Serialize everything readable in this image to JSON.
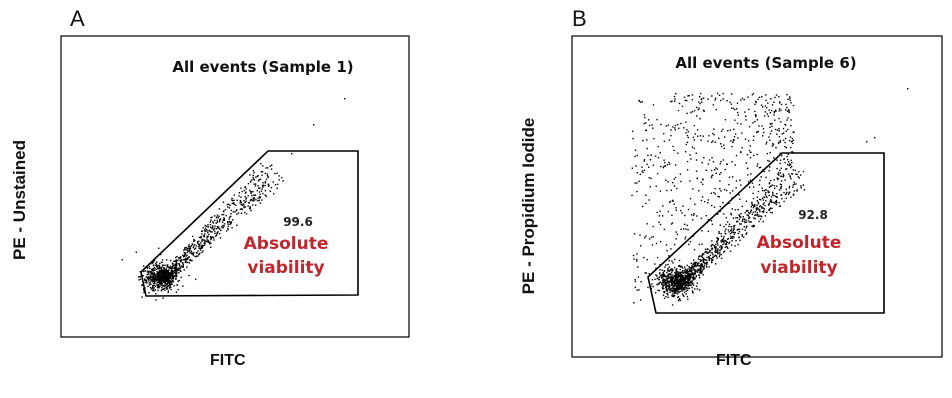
{
  "chart_data": [
    {
      "type": "scatter",
      "panel_letter": "A",
      "title": "All events (Sample 1)",
      "xlabel": "FITC",
      "ylabel": "PE - Unstained",
      "gate": {
        "percentage": "99.6",
        "label_line1": "Absolute",
        "label_line2": "viability"
      },
      "x": [],
      "y": [],
      "grid": false,
      "colors": {
        "points": "#000000",
        "gate_text": "#c0272d"
      }
    },
    {
      "type": "scatter",
      "panel_letter": "B",
      "title": "All events (Sample 6)",
      "xlabel": "FITC",
      "ylabel": "PE - Propidium Iodide",
      "gate": {
        "percentage": "92.8",
        "label_line1": "Absolute",
        "label_line2": "viability"
      },
      "x": [],
      "y": [],
      "grid": false,
      "colors": {
        "points": "#000000",
        "gate_text": "#c0272d"
      }
    }
  ]
}
